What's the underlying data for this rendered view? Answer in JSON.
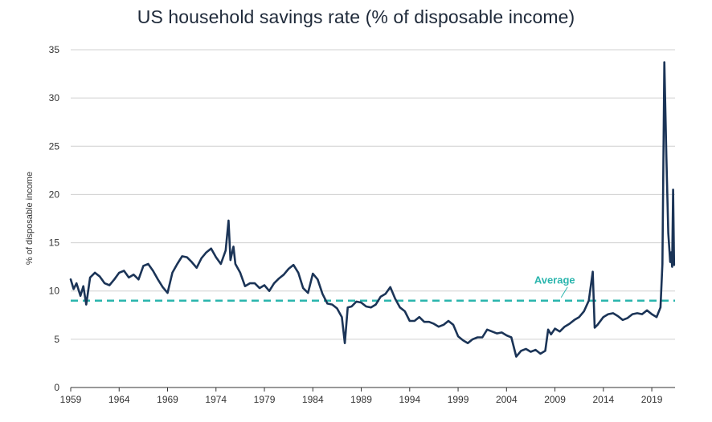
{
  "chart_data": {
    "type": "line",
    "title": "US household savings rate (% of disposable income)",
    "xlabel": "",
    "ylabel": "% of disposable income",
    "ylim": [
      0,
      35
    ],
    "xlim": [
      1959,
      2021.4
    ],
    "y_ticks": [
      0,
      5,
      10,
      15,
      20,
      25,
      30,
      35
    ],
    "x_ticks": [
      1959,
      1964,
      1969,
      1974,
      1979,
      1984,
      1989,
      1994,
      1999,
      2004,
      2009,
      2014,
      2019
    ],
    "grid": true,
    "colors": {
      "series": "#1b3457",
      "average": "#2ab5ad",
      "grid": "#d0d0d0",
      "axis": "#333333"
    },
    "average": {
      "label": "Average",
      "value": 9.0
    },
    "series": [
      {
        "name": "US household savings rate",
        "x": [
          1959.0,
          1959.3,
          1959.6,
          1960.0,
          1960.3,
          1960.6,
          1961.0,
          1961.5,
          1962.0,
          1962.5,
          1963.0,
          1963.5,
          1964.0,
          1964.5,
          1965.0,
          1965.5,
          1966.0,
          1966.5,
          1967.0,
          1967.5,
          1968.0,
          1968.5,
          1969.0,
          1969.5,
          1970.0,
          1970.5,
          1971.0,
          1971.5,
          1972.0,
          1972.5,
          1973.0,
          1973.5,
          1974.0,
          1974.5,
          1975.0,
          1975.3,
          1975.5,
          1975.8,
          1976.0,
          1976.5,
          1977.0,
          1977.5,
          1978.0,
          1978.5,
          1979.0,
          1979.5,
          1980.0,
          1980.5,
          1981.0,
          1981.5,
          1982.0,
          1982.5,
          1983.0,
          1983.5,
          1984.0,
          1984.5,
          1985.0,
          1985.5,
          1986.0,
          1986.5,
          1987.0,
          1987.3,
          1987.6,
          1988.0,
          1988.5,
          1989.0,
          1989.5,
          1990.0,
          1990.5,
          1991.0,
          1991.5,
          1992.0,
          1992.5,
          1993.0,
          1993.5,
          1994.0,
          1994.5,
          1995.0,
          1995.5,
          1996.0,
          1996.5,
          1997.0,
          1997.5,
          1998.0,
          1998.5,
          1999.0,
          1999.5,
          2000.0,
          2000.5,
          2001.0,
          2001.5,
          2002.0,
          2002.5,
          2003.0,
          2003.5,
          2004.0,
          2004.5,
          2005.0,
          2005.5,
          2006.0,
          2006.5,
          2007.0,
          2007.5,
          2008.0,
          2008.3,
          2008.6,
          2009.0,
          2009.5,
          2010.0,
          2010.5,
          2011.0,
          2011.5,
          2012.0,
          2012.5,
          2012.9,
          2013.1,
          2013.4,
          2014.0,
          2014.5,
          2015.0,
          2015.5,
          2016.0,
          2016.5,
          2017.0,
          2017.5,
          2018.0,
          2018.5,
          2019.0,
          2019.5,
          2019.9,
          2020.1,
          2020.3,
          2020.5,
          2020.7,
          2020.9,
          2021.0,
          2021.1,
          2021.2,
          2021.3
        ],
        "values": [
          11.2,
          10.2,
          10.8,
          9.5,
          10.5,
          8.6,
          11.4,
          11.9,
          11.5,
          10.8,
          10.6,
          11.2,
          11.9,
          12.1,
          11.4,
          11.7,
          11.2,
          12.6,
          12.8,
          12.1,
          11.2,
          10.4,
          9.8,
          11.9,
          12.8,
          13.6,
          13.5,
          13.0,
          12.4,
          13.4,
          14.0,
          14.4,
          13.5,
          12.8,
          14.2,
          17.3,
          13.2,
          14.6,
          12.8,
          11.9,
          10.5,
          10.8,
          10.8,
          10.3,
          10.6,
          10.0,
          10.8,
          11.3,
          11.7,
          12.3,
          12.7,
          11.9,
          10.3,
          9.8,
          11.8,
          11.2,
          9.7,
          8.7,
          8.6,
          8.2,
          7.3,
          4.6,
          8.3,
          8.4,
          8.9,
          8.8,
          8.4,
          8.3,
          8.6,
          9.4,
          9.7,
          10.4,
          9.2,
          8.3,
          7.9,
          6.9,
          6.9,
          7.3,
          6.8,
          6.8,
          6.6,
          6.3,
          6.5,
          6.9,
          6.5,
          5.3,
          4.9,
          4.6,
          5.0,
          5.2,
          5.2,
          6.0,
          5.8,
          5.6,
          5.7,
          5.4,
          5.2,
          3.2,
          3.8,
          4.0,
          3.7,
          3.9,
          3.5,
          3.8,
          6.0,
          5.5,
          6.1,
          5.8,
          6.3,
          6.6,
          7.0,
          7.3,
          7.9,
          9.0,
          12.0,
          6.2,
          6.5,
          7.3,
          7.6,
          7.7,
          7.4,
          7.0,
          7.2,
          7.6,
          7.7,
          7.6,
          8.0,
          7.6,
          7.3,
          8.3,
          12.8,
          33.7,
          24.0,
          16.0,
          13.0,
          14.0,
          12.5,
          20.5,
          12.7
        ]
      }
    ]
  }
}
